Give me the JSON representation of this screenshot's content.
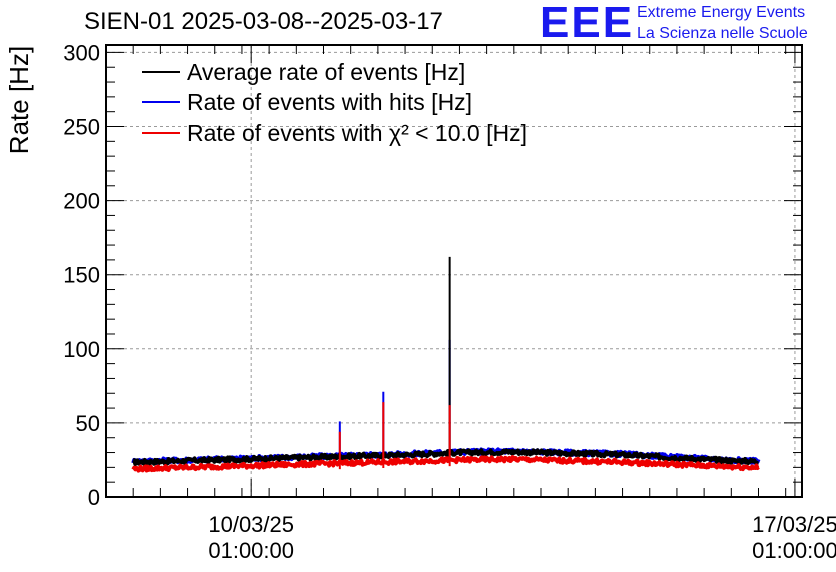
{
  "title": "SIEN-01 2025-03-08--2025-03-17",
  "logo": {
    "mark": "EEE",
    "line1": "Extreme Energy Events",
    "line2": "La Scienza nelle Scuole",
    "color": "#1a1aee"
  },
  "chart_data": {
    "type": "line",
    "title": "SIEN-01 2025-03-08--2025-03-17",
    "xlabel": "",
    "ylabel": "Rate [Hz]",
    "ylim": [
      0,
      305
    ],
    "xlim_days": [
      0,
      12.8
    ],
    "grid": true,
    "legend_position": "top-left",
    "yticks": [
      0,
      50,
      100,
      150,
      200,
      250,
      300
    ],
    "xticks": [
      {
        "day": 2.67,
        "label1": "10/03/25",
        "label2": "01:00:00"
      },
      {
        "day": 12.67,
        "label1": "17/03/25",
        "label2": "01:00:00"
      }
    ],
    "series": [
      {
        "name": "Average rate of events [Hz]",
        "color": "#000000",
        "x": [
          0.5,
          1.5,
          2.5,
          3.5,
          4.5,
          5.5,
          6.5,
          7.5,
          8.5,
          9.5,
          10.5,
          11.5,
          12.0
        ],
        "values": [
          23.5,
          24.5,
          25.5,
          26.5,
          27.5,
          28.5,
          30.0,
          30.5,
          29.5,
          28.5,
          26.5,
          24.5,
          24.0
        ],
        "spikes": [
          {
            "x": 6.32,
            "value": 162
          }
        ]
      },
      {
        "name": "Rate of events with hits [Hz]",
        "color": "#0000ee",
        "x": [
          0.5,
          1.5,
          2.5,
          3.5,
          4.5,
          5.5,
          6.5,
          7.5,
          8.5,
          9.5,
          10.5,
          11.5,
          12.0
        ],
        "values": [
          24,
          25,
          26,
          27,
          28,
          29,
          30.5,
          31,
          30,
          29,
          27,
          25,
          24.5
        ],
        "spikes": [
          {
            "x": 4.3,
            "value": 51
          },
          {
            "x": 5.1,
            "value": 71
          },
          {
            "x": 6.32,
            "value": 106
          }
        ]
      },
      {
        "name": "Rate of events with χ² < 10.0 [Hz]",
        "color": "#ee0000",
        "x": [
          0.5,
          1.5,
          2.5,
          3.5,
          4.5,
          5.5,
          6.5,
          7.5,
          8.5,
          9.5,
          10.5,
          11.5,
          12.0
        ],
        "values": [
          19,
          20,
          21,
          22,
          23,
          24,
          25,
          25.5,
          24.5,
          23.5,
          22,
          20.5,
          20
        ],
        "spikes": [
          {
            "x": 4.3,
            "value": 44
          },
          {
            "x": 5.1,
            "value": 64
          },
          {
            "x": 6.32,
            "value": 62
          }
        ]
      }
    ]
  }
}
